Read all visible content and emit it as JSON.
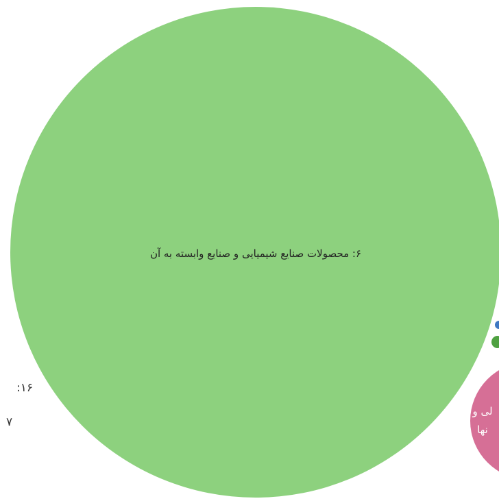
{
  "chart_data": {
    "type": "bubble",
    "title": "",
    "colors": {
      "chemical": "#8dd17e",
      "pink": "#d66f96",
      "darkgreen": "#4fa141",
      "blue": "#3f78c2",
      "text_dark": "#222222",
      "text_light": "#ffffff"
    },
    "bubbles": [
      {
        "label": "۶: محصولات صنایع شیمیایی و صنایع وابسته به آن",
        "color_key": "chemical"
      },
      {
        "label_line1": "لی و",
        "label_line2": "نها",
        "color_key": "pink"
      },
      {
        "label": "",
        "color_key": "darkgreen"
      },
      {
        "label": "",
        "color_key": "blue"
      }
    ],
    "side_labels": [
      "۱۶:",
      "۷"
    ]
  }
}
